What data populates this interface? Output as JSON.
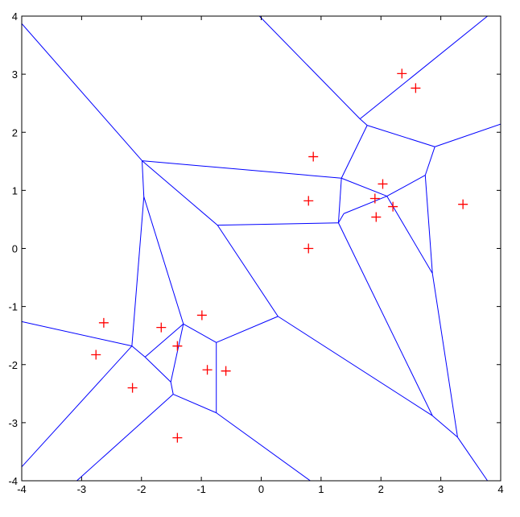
{
  "chart_data": {
    "type": "voronoi",
    "x": [
      2.35,
      2.58,
      0.87,
      2.03,
      1.9,
      2.2,
      1.92,
      3.37,
      0.79,
      0.79,
      -2.63,
      -2.76,
      -1.67,
      -0.99,
      -1.4,
      -0.9,
      -0.59,
      -2.15,
      -1.4
    ],
    "y": [
      3.01,
      2.76,
      1.58,
      1.11,
      0.86,
      0.72,
      0.54,
      0.76,
      0.82,
      0,
      -1.28,
      -1.83,
      -1.36,
      -1.15,
      -1.68,
      -2.09,
      -2.11,
      -2.4,
      -3.26
    ],
    "point_color": "#ff0000",
    "edges": [
      [
        -1.99,
        1.51,
        -4,
        3.87
      ],
      [
        -1.99,
        1.51,
        1.34,
        1.21
      ],
      [
        -1.99,
        1.51,
        -1.96,
        0.89
      ],
      [
        -1.99,
        1.51,
        -0.73,
        0.4
      ],
      [
        1.65,
        2.23,
        -0.03,
        4.0
      ],
      [
        1.65,
        2.23,
        3.78,
        4.0
      ],
      [
        1.65,
        2.23,
        1.77,
        2.12
      ],
      [
        1.77,
        2.12,
        1.34,
        1.21
      ],
      [
        1.77,
        2.12,
        2.9,
        1.75
      ],
      [
        2.9,
        1.75,
        4.0,
        2.14
      ],
      [
        2.9,
        1.75,
        2.74,
        1.26
      ],
      [
        2.74,
        1.26,
        2.1,
        0.9
      ],
      [
        2.74,
        1.26,
        2.86,
        -0.43
      ],
      [
        2.86,
        -0.43,
        3.28,
        -3.25
      ],
      [
        3.28,
        -3.25,
        3.78,
        -4
      ],
      [
        3.28,
        -3.25,
        2.86,
        -2.88
      ],
      [
        1.34,
        1.21,
        2.1,
        0.9
      ],
      [
        2.1,
        0.9,
        1.38,
        0.6
      ],
      [
        2.1,
        0.9,
        2.86,
        -0.43
      ],
      [
        1.34,
        1.21,
        1.29,
        0.44
      ],
      [
        1.38,
        0.6,
        1.29,
        0.44
      ],
      [
        1.29,
        0.44,
        -0.73,
        0.4
      ],
      [
        1.29,
        0.44,
        2.86,
        -2.88
      ],
      [
        -0.73,
        0.4,
        0.28,
        -1.17
      ],
      [
        0.28,
        -1.17,
        2.86,
        -2.88
      ],
      [
        0.28,
        -1.17,
        -0.75,
        -1.62
      ],
      [
        -0.75,
        -1.62,
        -0.75,
        -2.83
      ],
      [
        -0.75,
        -2.83,
        0.82,
        -4
      ],
      [
        -0.75,
        -1.62,
        -1.3,
        -1.3
      ],
      [
        -1.3,
        -1.3,
        -1.51,
        -2.3
      ],
      [
        -1.51,
        -2.3,
        -1.47,
        -2.51
      ],
      [
        -1.47,
        -2.51,
        -0.75,
        -2.83
      ],
      [
        -1.47,
        -2.51,
        -3.08,
        -4
      ],
      [
        -1.3,
        -1.3,
        -1.96,
        0.89
      ],
      [
        -1.96,
        0.89,
        -2.16,
        -1.68
      ],
      [
        -2.16,
        -1.68,
        -4,
        -1.26
      ],
      [
        -2.16,
        -1.68,
        -1.94,
        -1.87
      ],
      [
        -1.94,
        -1.87,
        -1.3,
        -1.3
      ],
      [
        -1.94,
        -1.87,
        -1.51,
        -2.3
      ],
      [
        -2.16,
        -1.68,
        -4,
        -3.76
      ]
    ],
    "edge_color": "#0000ff",
    "xlim": [
      -4,
      4
    ],
    "ylim": [
      -4,
      4
    ],
    "xticks": [
      -4,
      -3,
      -2,
      -1,
      0,
      1,
      2,
      3,
      4
    ],
    "yticks": [
      -4,
      -3,
      -2,
      -1,
      0,
      1,
      2,
      3,
      4
    ]
  }
}
